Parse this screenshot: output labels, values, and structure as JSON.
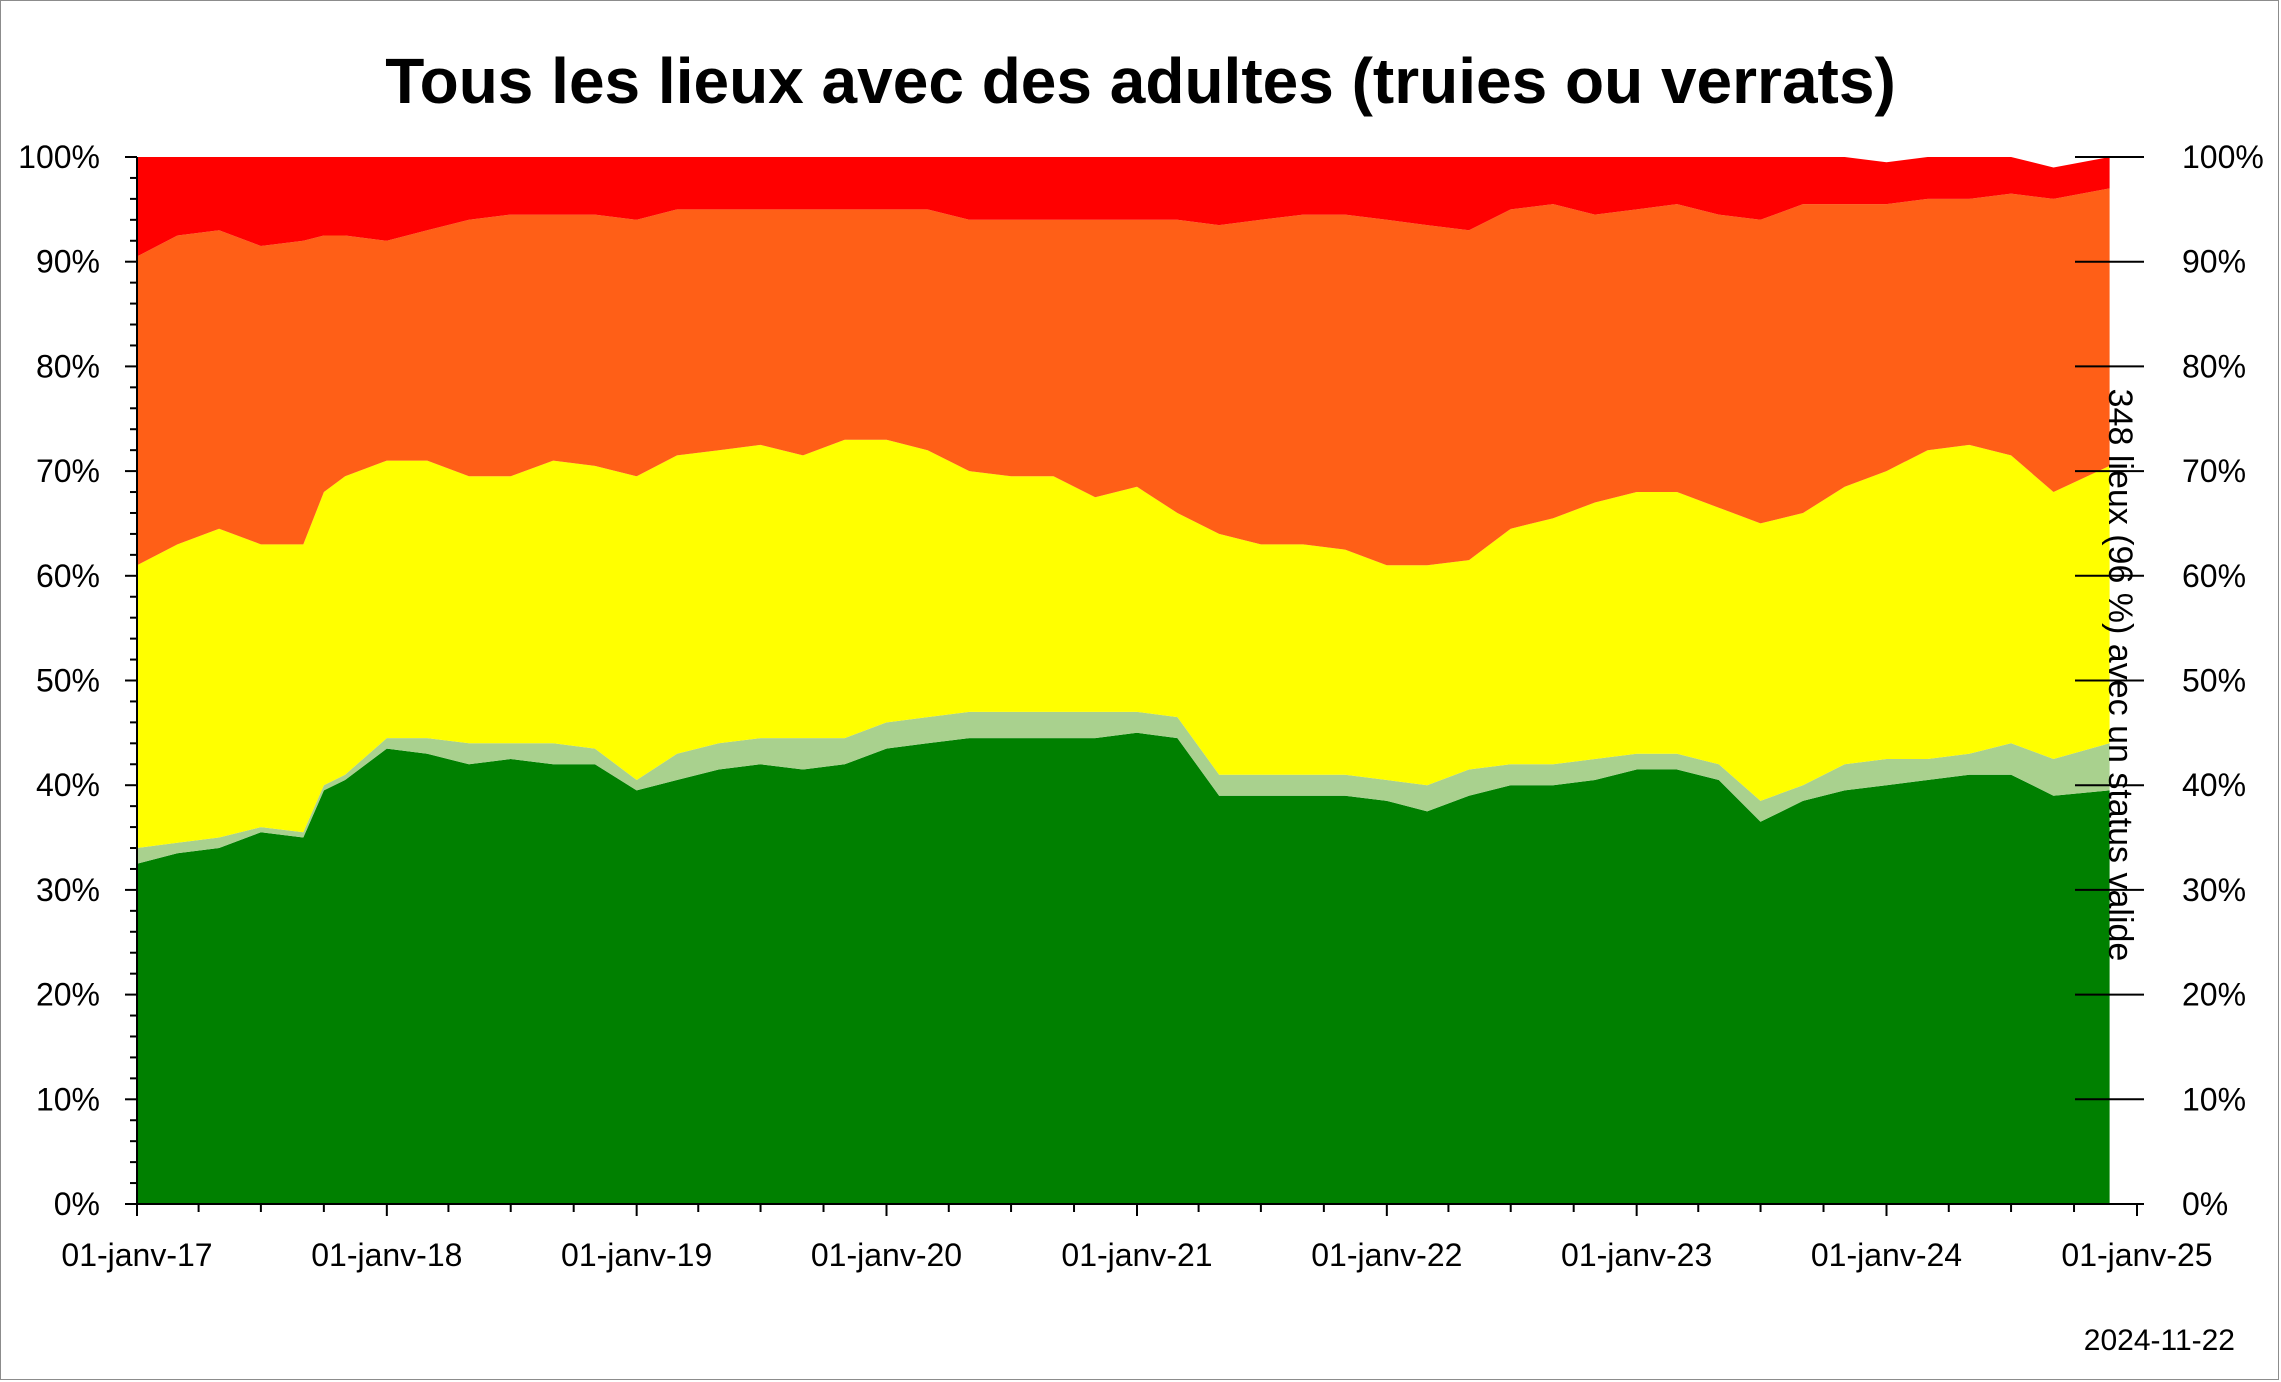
{
  "title": "Tous les lieux avec des adultes (truies ou verrats)",
  "right_axis_label": "348 lieux (96 %) avec un status valide",
  "footer_date": "2024-11-22",
  "chart_data": {
    "type": "area",
    "stacked": true,
    "x_type": "date",
    "xlim": [
      "2017-01-01",
      "2025-01-01"
    ],
    "ylim": [
      0,
      100
    ],
    "y_unit": "%",
    "y_ticks": [
      "0%",
      "10%",
      "20%",
      "30%",
      "40%",
      "50%",
      "60%",
      "70%",
      "80%",
      "90%",
      "100%"
    ],
    "x_ticks": [
      "01-janv-17",
      "01-janv-18",
      "01-janv-19",
      "01-janv-20",
      "01-janv-21",
      "01-janv-22",
      "01-janv-23",
      "01-janv-24",
      "01-janv-25"
    ],
    "secondary_y_axis": true,
    "grid": false,
    "colors": [
      "#008000",
      "#a9d18e",
      "#ffff00",
      "#ff5f17",
      "#ff0000",
      "#7f7f00"
    ],
    "x": [
      "2017-01-01",
      "2017-03-01",
      "2017-05-01",
      "2017-07-01",
      "2017-09-01",
      "2017-10-01",
      "2017-11-01",
      "2018-01-01",
      "2018-03-01",
      "2018-05-01",
      "2018-07-01",
      "2018-09-01",
      "2018-11-01",
      "2019-01-01",
      "2019-03-01",
      "2019-05-01",
      "2019-07-01",
      "2019-09-01",
      "2019-11-01",
      "2020-01-01",
      "2020-03-01",
      "2020-05-01",
      "2020-07-01",
      "2020-09-01",
      "2020-11-01",
      "2021-01-01",
      "2021-03-01",
      "2021-05-01",
      "2021-07-01",
      "2021-09-01",
      "2021-11-01",
      "2022-01-01",
      "2022-03-01",
      "2022-05-01",
      "2022-07-01",
      "2022-09-01",
      "2022-11-01",
      "2023-01-01",
      "2023-03-01",
      "2023-05-01",
      "2023-07-01",
      "2023-09-01",
      "2023-11-01",
      "2024-01-01",
      "2024-03-01",
      "2024-05-01",
      "2024-07-01",
      "2024-09-01",
      "2024-11-22"
    ],
    "series": [
      {
        "values": [
          32.5,
          33.5,
          34.0,
          35.5,
          35.0,
          39.5,
          40.5,
          43.5,
          43.0,
          42.0,
          42.5,
          42.0,
          42.0,
          39.5,
          40.5,
          41.5,
          42.0,
          41.5,
          42.0,
          43.5,
          44.0,
          44.5,
          44.5,
          44.5,
          44.5,
          45.0,
          44.5,
          39.0,
          39.0,
          39.0,
          39.0,
          38.5,
          37.5,
          39.0,
          40.0,
          40.0,
          40.5,
          41.5,
          41.5,
          40.5,
          36.5,
          38.5,
          39.5,
          40.0,
          40.5,
          41.0,
          41.0,
          39.0,
          39.5
        ]
      },
      {
        "values": [
          1.5,
          1.0,
          1.0,
          0.5,
          0.5,
          0.5,
          0.5,
          1.0,
          1.5,
          2.0,
          1.5,
          2.0,
          1.5,
          1.0,
          2.5,
          2.5,
          2.5,
          3.0,
          2.5,
          2.5,
          2.5,
          2.5,
          2.5,
          2.5,
          2.5,
          2.0,
          2.0,
          2.0,
          2.0,
          2.0,
          2.0,
          2.0,
          2.5,
          2.5,
          2.0,
          2.0,
          2.0,
          1.5,
          1.5,
          1.5,
          2.0,
          1.5,
          2.5,
          2.5,
          2.0,
          2.0,
          3.0,
          3.5,
          4.5
        ]
      },
      {
        "values": [
          27.0,
          28.5,
          29.5,
          27.0,
          27.5,
          28.0,
          28.5,
          26.5,
          26.5,
          25.5,
          25.5,
          27.0,
          27.0,
          29.0,
          28.5,
          28.0,
          28.0,
          27.0,
          28.5,
          27.0,
          25.5,
          23.0,
          22.5,
          22.5,
          20.5,
          21.5,
          19.5,
          23.0,
          22.0,
          22.0,
          21.5,
          20.5,
          21.0,
          20.0,
          22.5,
          23.5,
          24.5,
          25.0,
          25.0,
          24.5,
          26.5,
          26.0,
          26.5,
          27.5,
          29.5,
          29.5,
          27.5,
          25.5,
          26.5
        ]
      },
      {
        "values": [
          29.5,
          29.5,
          28.5,
          28.5,
          29.0,
          24.5,
          23.0,
          21.0,
          22.0,
          24.5,
          25.0,
          23.5,
          24.0,
          24.5,
          23.5,
          23.0,
          22.5,
          23.5,
          22.0,
          22.0,
          23.0,
          24.0,
          24.5,
          24.5,
          26.5,
          25.5,
          28.0,
          29.5,
          31.0,
          31.5,
          32.0,
          33.0,
          32.5,
          31.5,
          30.5,
          30.0,
          27.5,
          27.0,
          27.5,
          28.0,
          29.0,
          29.5,
          27.0,
          25.5,
          24.0,
          23.5,
          25.0,
          28.0,
          26.5
        ]
      },
      {
        "values": [
          9.5,
          7.5,
          7.0,
          8.5,
          8.0,
          7.5,
          7.5,
          8.0,
          7.0,
          6.0,
          5.5,
          5.5,
          5.5,
          6.0,
          5.0,
          5.0,
          5.0,
          5.0,
          5.0,
          5.0,
          5.0,
          6.0,
          6.0,
          6.0,
          6.0,
          6.0,
          6.0,
          6.5,
          6.0,
          5.5,
          5.5,
          6.0,
          6.5,
          7.0,
          5.0,
          4.5,
          5.5,
          5.0,
          4.5,
          5.5,
          6.0,
          4.5,
          4.5,
          4.0,
          4.0,
          4.0,
          3.5,
          3.0,
          3.0
        ]
      },
      {
        "values": [
          0,
          0,
          0,
          0,
          0,
          0,
          0,
          0,
          0,
          0,
          0,
          0,
          0,
          0,
          0,
          0,
          0,
          0,
          0,
          0,
          0,
          0,
          0,
          0,
          0,
          0,
          0,
          0,
          0,
          0,
          0,
          0,
          0,
          0,
          0,
          0,
          0,
          0,
          0,
          0,
          0,
          0,
          0,
          0,
          0,
          0,
          0,
          0,
          0
        ]
      }
    ]
  }
}
